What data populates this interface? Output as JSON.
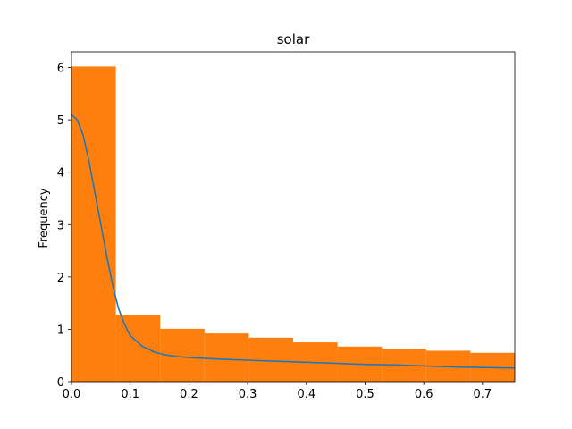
{
  "chart_data": {
    "type": "bar",
    "title": "solar",
    "xlabel": "",
    "ylabel": "Frequency",
    "xlim": [
      0,
      0.755
    ],
    "ylim": [
      0,
      6.3
    ],
    "xticks": [
      0.0,
      0.1,
      0.2,
      0.3,
      0.4,
      0.5,
      0.6,
      0.7
    ],
    "xtick_labels": [
      "0.0",
      "0.1",
      "0.2",
      "0.3",
      "0.4",
      "0.5",
      "0.6",
      "0.7"
    ],
    "yticks": [
      0,
      1,
      2,
      3,
      4,
      5,
      6
    ],
    "ytick_labels": [
      "0",
      "1",
      "2",
      "3",
      "4",
      "5",
      "6"
    ],
    "grid": false,
    "histogram": {
      "color": "#ff7f0e",
      "bins": [
        {
          "x0": 0.0,
          "x1": 0.0755,
          "value": 6.02
        },
        {
          "x0": 0.0755,
          "x1": 0.151,
          "value": 1.28
        },
        {
          "x0": 0.151,
          "x1": 0.2265,
          "value": 1.01
        },
        {
          "x0": 0.2265,
          "x1": 0.302,
          "value": 0.92
        },
        {
          "x0": 0.302,
          "x1": 0.3775,
          "value": 0.84
        },
        {
          "x0": 0.3775,
          "x1": 0.453,
          "value": 0.75
        },
        {
          "x0": 0.453,
          "x1": 0.5285,
          "value": 0.67
        },
        {
          "x0": 0.5285,
          "x1": 0.604,
          "value": 0.63
        },
        {
          "x0": 0.604,
          "x1": 0.6795,
          "value": 0.59
        },
        {
          "x0": 0.6795,
          "x1": 0.755,
          "value": 0.55
        }
      ]
    },
    "density_curve": {
      "color": "#1f77b4",
      "x": [
        0.0,
        0.01,
        0.02,
        0.03,
        0.04,
        0.05,
        0.06,
        0.07,
        0.08,
        0.09,
        0.1,
        0.12,
        0.14,
        0.16,
        0.18,
        0.2,
        0.25,
        0.3,
        0.35,
        0.4,
        0.45,
        0.5,
        0.55,
        0.6,
        0.65,
        0.7,
        0.755
      ],
      "y": [
        5.1,
        5.0,
        4.7,
        4.2,
        3.6,
        3.0,
        2.4,
        1.85,
        1.4,
        1.1,
        0.88,
        0.68,
        0.57,
        0.51,
        0.48,
        0.46,
        0.43,
        0.41,
        0.39,
        0.37,
        0.35,
        0.33,
        0.32,
        0.3,
        0.28,
        0.27,
        0.26
      ]
    }
  }
}
